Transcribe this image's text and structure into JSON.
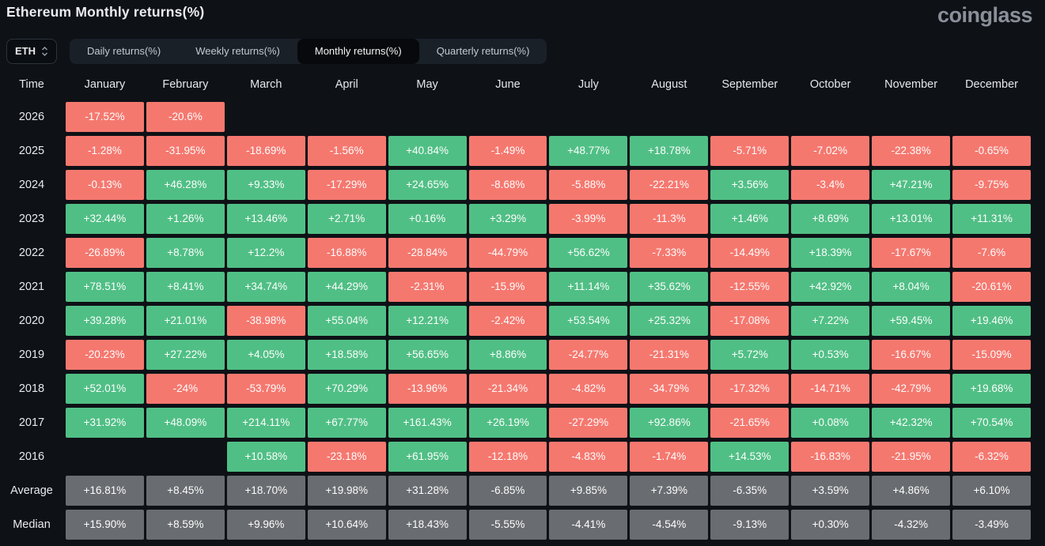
{
  "header": {
    "title": "Ethereum Monthly returns(%)",
    "logo": "coinglass"
  },
  "controls": {
    "symbol": "ETH",
    "symbol_chevron_icon": "up-down-chevron",
    "tabs": [
      "Daily returns(%)",
      "Weekly returns(%)",
      "Monthly returns(%)",
      "Quarterly returns(%)"
    ],
    "active_tab": "Monthly returns(%)"
  },
  "colors": {
    "positive": "#50bf85",
    "negative": "#f5786f",
    "summary": "#696c70",
    "page_bg": "#0e1116",
    "tabbar_bg": "#1a2028",
    "active_tab_bg": "#07090c"
  },
  "table": {
    "columns": [
      "Time",
      "January",
      "February",
      "March",
      "April",
      "May",
      "June",
      "July",
      "August",
      "September",
      "October",
      "November",
      "December"
    ],
    "rows": [
      {
        "label": "2026",
        "type": "year",
        "values": [
          "-17.52%",
          "-20.6%",
          "",
          "",
          "",
          "",
          "",
          "",
          "",
          "",
          "",
          ""
        ]
      },
      {
        "label": "2025",
        "type": "year",
        "values": [
          "-1.28%",
          "-31.95%",
          "-18.69%",
          "-1.56%",
          "+40.84%",
          "-1.49%",
          "+48.77%",
          "+18.78%",
          "-5.71%",
          "-7.02%",
          "-22.38%",
          "-0.65%"
        ]
      },
      {
        "label": "2024",
        "type": "year",
        "values": [
          "-0.13%",
          "+46.28%",
          "+9.33%",
          "-17.29%",
          "+24.65%",
          "-8.68%",
          "-5.88%",
          "-22.21%",
          "+3.56%",
          "-3.4%",
          "+47.21%",
          "-9.75%"
        ]
      },
      {
        "label": "2023",
        "type": "year",
        "values": [
          "+32.44%",
          "+1.26%",
          "+13.46%",
          "+2.71%",
          "+0.16%",
          "+3.29%",
          "-3.99%",
          "-11.3%",
          "+1.46%",
          "+8.69%",
          "+13.01%",
          "+11.31%"
        ]
      },
      {
        "label": "2022",
        "type": "year",
        "values": [
          "-26.89%",
          "+8.78%",
          "+12.2%",
          "-16.88%",
          "-28.84%",
          "-44.79%",
          "+56.62%",
          "-7.33%",
          "-14.49%",
          "+18.39%",
          "-17.67%",
          "-7.6%"
        ]
      },
      {
        "label": "2021",
        "type": "year",
        "values": [
          "+78.51%",
          "+8.41%",
          "+34.74%",
          "+44.29%",
          "-2.31%",
          "-15.9%",
          "+11.14%",
          "+35.62%",
          "-12.55%",
          "+42.92%",
          "+8.04%",
          "-20.61%"
        ]
      },
      {
        "label": "2020",
        "type": "year",
        "values": [
          "+39.28%",
          "+21.01%",
          "-38.98%",
          "+55.04%",
          "+12.21%",
          "-2.42%",
          "+53.54%",
          "+25.32%",
          "-17.08%",
          "+7.22%",
          "+59.45%",
          "+19.46%"
        ]
      },
      {
        "label": "2019",
        "type": "year",
        "values": [
          "-20.23%",
          "+27.22%",
          "+4.05%",
          "+18.58%",
          "+56.65%",
          "+8.86%",
          "-24.77%",
          "-21.31%",
          "+5.72%",
          "+0.53%",
          "-16.67%",
          "-15.09%"
        ]
      },
      {
        "label": "2018",
        "type": "year",
        "values": [
          "+52.01%",
          "-24%",
          "-53.79%",
          "+70.29%",
          "-13.96%",
          "-21.34%",
          "-4.82%",
          "-34.79%",
          "-17.32%",
          "-14.71%",
          "-42.79%",
          "+19.68%"
        ]
      },
      {
        "label": "2017",
        "type": "year",
        "values": [
          "+31.92%",
          "+48.09%",
          "+214.11%",
          "+67.77%",
          "+161.43%",
          "+26.19%",
          "-27.29%",
          "+92.86%",
          "-21.65%",
          "+0.08%",
          "+42.32%",
          "+70.54%"
        ]
      },
      {
        "label": "2016",
        "type": "year",
        "values": [
          "",
          "",
          "+10.58%",
          "-23.18%",
          "+61.95%",
          "-12.18%",
          "-4.83%",
          "-1.74%",
          "+14.53%",
          "-16.83%",
          "-21.95%",
          "-6.32%"
        ]
      },
      {
        "label": "Average",
        "type": "summary",
        "values": [
          "+16.81%",
          "+8.45%",
          "+18.70%",
          "+19.98%",
          "+31.28%",
          "-6.85%",
          "+9.85%",
          "+7.39%",
          "-6.35%",
          "+3.59%",
          "+4.86%",
          "+6.10%"
        ]
      },
      {
        "label": "Median",
        "type": "summary",
        "values": [
          "+15.90%",
          "+8.59%",
          "+9.96%",
          "+10.64%",
          "+18.43%",
          "-5.55%",
          "-4.41%",
          "-4.54%",
          "-9.13%",
          "+0.30%",
          "-4.32%",
          "-3.49%"
        ]
      }
    ]
  },
  "chart_data": {
    "type": "heatmap",
    "title": "Ethereum Monthly returns(%)",
    "columns": [
      "January",
      "February",
      "March",
      "April",
      "May",
      "June",
      "July",
      "August",
      "September",
      "October",
      "November",
      "December"
    ],
    "rows": [
      "2026",
      "2025",
      "2024",
      "2023",
      "2022",
      "2021",
      "2020",
      "2019",
      "2018",
      "2017",
      "2016",
      "Average",
      "Median"
    ],
    "values_percent": [
      [
        -17.52,
        -20.6,
        null,
        null,
        null,
        null,
        null,
        null,
        null,
        null,
        null,
        null
      ],
      [
        -1.28,
        -31.95,
        -18.69,
        -1.56,
        40.84,
        -1.49,
        48.77,
        18.78,
        -5.71,
        -7.02,
        -22.38,
        -0.65
      ],
      [
        -0.13,
        46.28,
        9.33,
        -17.29,
        24.65,
        -8.68,
        -5.88,
        -22.21,
        3.56,
        -3.4,
        47.21,
        -9.75
      ],
      [
        32.44,
        1.26,
        13.46,
        2.71,
        0.16,
        3.29,
        -3.99,
        -11.3,
        1.46,
        8.69,
        13.01,
        11.31
      ],
      [
        -26.89,
        8.78,
        12.2,
        -16.88,
        -28.84,
        -44.79,
        56.62,
        -7.33,
        -14.49,
        18.39,
        -17.67,
        -7.6
      ],
      [
        78.51,
        8.41,
        34.74,
        44.29,
        -2.31,
        -15.9,
        11.14,
        35.62,
        -12.55,
        42.92,
        8.04,
        -20.61
      ],
      [
        39.28,
        21.01,
        -38.98,
        55.04,
        12.21,
        -2.42,
        53.54,
        25.32,
        -17.08,
        7.22,
        59.45,
        19.46
      ],
      [
        -20.23,
        27.22,
        4.05,
        18.58,
        56.65,
        8.86,
        -24.77,
        -21.31,
        5.72,
        0.53,
        -16.67,
        -15.09
      ],
      [
        52.01,
        -24,
        -53.79,
        70.29,
        -13.96,
        -21.34,
        -4.82,
        -34.79,
        -17.32,
        -14.71,
        -42.79,
        19.68
      ],
      [
        31.92,
        48.09,
        214.11,
        67.77,
        161.43,
        26.19,
        -27.29,
        92.86,
        -21.65,
        0.08,
        42.32,
        70.54
      ],
      [
        null,
        null,
        10.58,
        -23.18,
        61.95,
        -12.18,
        -4.83,
        -1.74,
        14.53,
        -16.83,
        -21.95,
        -6.32
      ],
      [
        16.81,
        8.45,
        18.7,
        19.98,
        31.28,
        -6.85,
        9.85,
        7.39,
        -6.35,
        3.59,
        4.86,
        6.1
      ],
      [
        15.9,
        8.59,
        9.96,
        10.64,
        18.43,
        -5.55,
        -4.41,
        -4.54,
        -9.13,
        0.3,
        -4.32,
        -3.49
      ]
    ],
    "legend": "green = positive monthly return, red = negative monthly return, gray = Average/Median summary rows"
  }
}
